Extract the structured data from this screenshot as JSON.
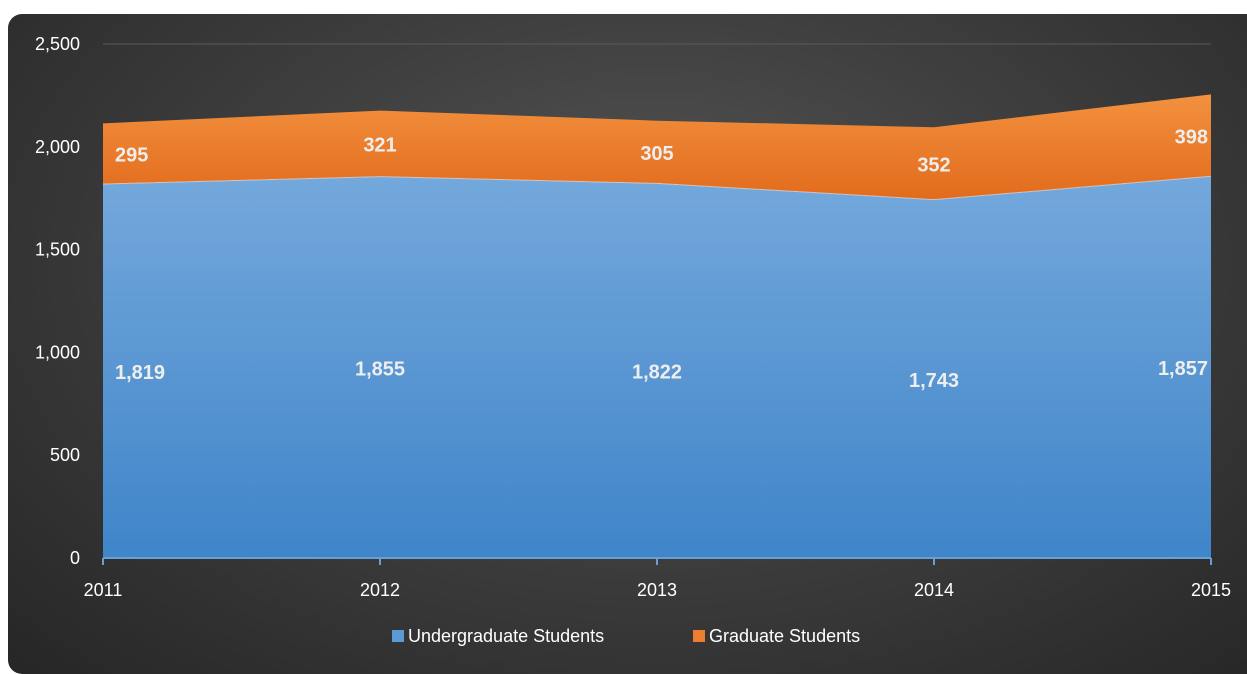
{
  "chart_data": {
    "type": "area",
    "stacked": true,
    "categories": [
      "2011",
      "2012",
      "2013",
      "2014",
      "2015"
    ],
    "series": [
      {
        "name": "Undergraduate Students",
        "values": [
          1819,
          1855,
          1822,
          1743,
          1857
        ],
        "labels": [
          "1,819",
          "1,855",
          "1,822",
          "1,743",
          "1,857"
        ],
        "color": "#5b9bd5"
      },
      {
        "name": "Graduate Students",
        "values": [
          295,
          321,
          305,
          352,
          398
        ],
        "labels": [
          "295",
          "321",
          "305",
          "352",
          "398"
        ],
        "color": "#ed7d31"
      }
    ],
    "ylim": [
      0,
      2500
    ],
    "yticks": [
      0,
      500,
      1000,
      1500,
      2000,
      2500
    ],
    "ytick_labels": [
      "0",
      "500",
      "1,000",
      "1,500",
      "2,000",
      "2,500"
    ],
    "grid": true,
    "legend_position": "bottom",
    "background": "#3a3a3a"
  }
}
